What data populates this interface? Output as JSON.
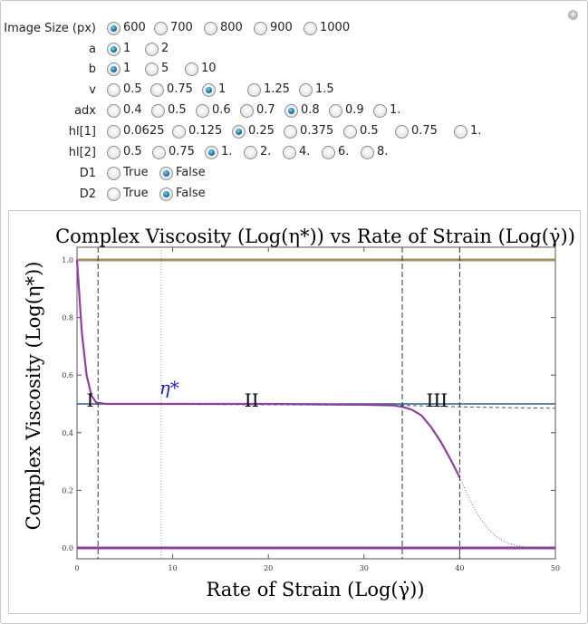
{
  "controls": [
    {
      "label": "Image Size (px)",
      "options": [
        "600",
        "700",
        "800",
        "900",
        "1000"
      ],
      "selected": 0
    },
    {
      "label": "a",
      "options": [
        "1",
        "2"
      ],
      "selected": 0
    },
    {
      "label": "b",
      "options": [
        "1",
        "5",
        "10"
      ],
      "selected": 0
    },
    {
      "label": "v",
      "options": [
        "0.5",
        "0.75",
        "1",
        "1.25",
        "1.5"
      ],
      "selected": 2
    },
    {
      "label": "adx",
      "options": [
        "0.4",
        "0.5",
        "0.6",
        "0.7",
        "0.8",
        "0.9",
        "1."
      ],
      "selected": 4
    },
    {
      "label": "hl[1]",
      "options": [
        "0.0625",
        "0.125",
        "0.25",
        "0.375",
        "0.5",
        "0.75",
        "1."
      ],
      "selected": 2
    },
    {
      "label": "hl[2]",
      "options": [
        "0.5",
        "0.75",
        "1.",
        "2.",
        "4.",
        "6.",
        "8."
      ],
      "selected": 2
    },
    {
      "label": "D1",
      "options": [
        "True",
        "False"
      ],
      "selected": 1
    },
    {
      "label": "D2",
      "options": [
        "True",
        "False"
      ],
      "selected": 1
    }
  ],
  "chart_data": {
    "type": "line",
    "title": "Complex Viscosity (Log(η*)) vs Rate of Strain (Log(γ̇))",
    "xlabel": "Rate of Strain (Log(γ̇))",
    "ylabel": "Complex Viscosity (Log(η*))",
    "xlim": [
      0,
      50
    ],
    "ylim": [
      0,
      1
    ],
    "x_ticks": [
      "0",
      "10",
      "20",
      "30",
      "40",
      "50"
    ],
    "y_ticks": [
      "0.0",
      "0.2",
      "0.4",
      "0.6",
      "0.8",
      "1.0"
    ],
    "colors": {
      "purple": "#8f3fa0",
      "tan": "#a88d5c",
      "blue": "#2e5a8e",
      "annotation": "#1f1fb8"
    },
    "annotations": [
      {
        "text": "I",
        "x": 1,
        "y": 0.49
      },
      {
        "text": "II",
        "x": 17.5,
        "y": 0.49
      },
      {
        "text": "III",
        "x": 36.5,
        "y": 0.49
      },
      {
        "text": "η*",
        "x": 8.6,
        "y": 0.535
      }
    ],
    "vertical_lines": [
      {
        "x": 2.2,
        "style": "dashed"
      },
      {
        "x": 8.8,
        "style": "dotted"
      },
      {
        "x": 34,
        "style": "dashed"
      },
      {
        "x": 40,
        "style": "dashed"
      }
    ],
    "series": [
      {
        "x": [
          0,
          0.5,
          1,
          1.5,
          2,
          3,
          5,
          10,
          20,
          30,
          33,
          34,
          35,
          36,
          37,
          38,
          39,
          40
        ],
        "y": [
          1.0,
          0.75,
          0.6,
          0.53,
          0.505,
          0.5,
          0.5,
          0.5,
          0.5,
          0.497,
          0.495,
          0.49,
          0.48,
          0.46,
          0.42,
          0.37,
          0.31,
          0.245
        ]
      },
      {
        "x": [
          40,
          41,
          42,
          43,
          44,
          45,
          46,
          47,
          48,
          49,
          50
        ],
        "y": [
          0.245,
          0.17,
          0.11,
          0.065,
          0.035,
          0.017,
          0.007,
          0.003,
          0.001,
          0.0,
          0.0
        ]
      },
      {
        "x": [
          0,
          50
        ],
        "y": [
          1.0,
          1.0
        ]
      },
      {
        "x": [
          0,
          50
        ],
        "y": [
          0.0,
          0.0
        ]
      },
      {
        "x": [
          0,
          50
        ],
        "y": [
          0.5,
          0.5
        ]
      },
      {
        "x": [
          0,
          34,
          40,
          45,
          50
        ],
        "y": [
          0.5,
          0.495,
          0.49,
          0.487,
          0.485
        ]
      }
    ]
  }
}
